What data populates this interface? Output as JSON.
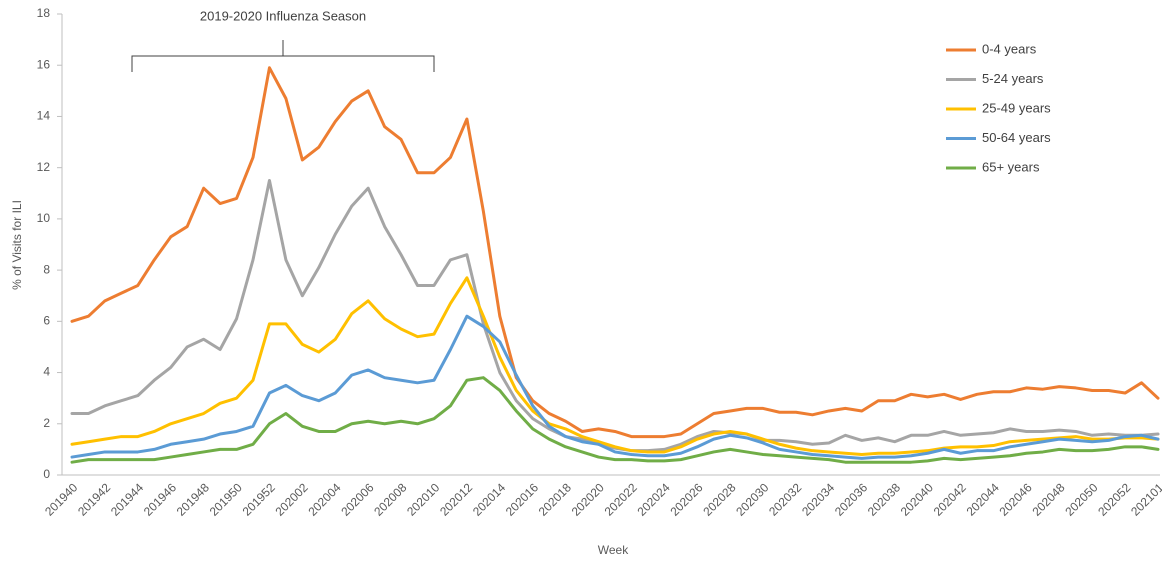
{
  "chart_data": {
    "type": "line",
    "annotation": "2019-2020 Influenza Season",
    "x_label": "Week",
    "y_label": "% of Visits for ILI",
    "categories": [
      "201940",
      null,
      "201942",
      null,
      "201944",
      null,
      "201946",
      null,
      "201948",
      null,
      "201950",
      null,
      "201952",
      null,
      "202002",
      null,
      "202004",
      null,
      "202006",
      null,
      "202008",
      null,
      "202010",
      null,
      "202012",
      null,
      "202014",
      null,
      "202016",
      null,
      "202018",
      null,
      "202020",
      null,
      "202022",
      null,
      "202024",
      null,
      "202026",
      null,
      "202028",
      null,
      "202030",
      null,
      "202032",
      null,
      "202034",
      null,
      "202036",
      null,
      "202038",
      null,
      "202040",
      null,
      "202042",
      null,
      "202044",
      null,
      "202046",
      null,
      "202048",
      null,
      "202050",
      null,
      "202052",
      null,
      "202101"
    ],
    "series": [
      {
        "name": "0-4 years",
        "color": "#ED7D31",
        "values": [
          6.0,
          6.2,
          6.8,
          7.1,
          7.4,
          8.4,
          9.3,
          9.7,
          11.2,
          10.6,
          10.8,
          12.4,
          15.9,
          14.7,
          12.3,
          12.8,
          13.8,
          14.6,
          15.0,
          13.6,
          13.1,
          11.8,
          11.8,
          12.4,
          13.9,
          10.3,
          6.2,
          3.8,
          2.9,
          2.4,
          2.1,
          1.7,
          1.8,
          1.7,
          1.5,
          1.5,
          1.5,
          1.6,
          2.0,
          2.4,
          2.5,
          2.6,
          2.6,
          2.45,
          2.45,
          2.35,
          2.5,
          2.6,
          2.5,
          2.9,
          2.9,
          3.15,
          3.05,
          3.15,
          2.95,
          3.15,
          3.25,
          3.25,
          3.4,
          3.35,
          3.45,
          3.4,
          3.3,
          3.3,
          3.2,
          3.6,
          3.0
        ]
      },
      {
        "name": "5-24 years",
        "color": "#A5A5A5",
        "values": [
          2.4,
          2.4,
          2.7,
          2.9,
          3.1,
          3.7,
          4.2,
          5.0,
          5.3,
          4.9,
          6.1,
          8.4,
          11.5,
          8.4,
          7.0,
          8.1,
          9.4,
          10.5,
          11.2,
          9.7,
          8.6,
          7.4,
          7.4,
          8.4,
          8.6,
          5.9,
          4.0,
          2.9,
          2.2,
          1.8,
          1.5,
          1.4,
          1.2,
          1.05,
          0.95,
          0.95,
          1.0,
          1.2,
          1.5,
          1.7,
          1.65,
          1.6,
          1.35,
          1.35,
          1.3,
          1.2,
          1.25,
          1.55,
          1.35,
          1.45,
          1.3,
          1.55,
          1.55,
          1.7,
          1.55,
          1.6,
          1.65,
          1.8,
          1.7,
          1.7,
          1.75,
          1.7,
          1.55,
          1.6,
          1.55,
          1.55,
          1.6
        ]
      },
      {
        "name": "25-49 years",
        "color": "#FFC000",
        "values": [
          1.2,
          1.3,
          1.4,
          1.5,
          1.5,
          1.7,
          2.0,
          2.2,
          2.4,
          2.8,
          3.0,
          3.7,
          5.9,
          5.9,
          5.1,
          4.8,
          5.3,
          6.3,
          6.8,
          6.1,
          5.7,
          5.4,
          5.5,
          6.7,
          7.7,
          6.2,
          4.6,
          3.3,
          2.5,
          2.0,
          1.8,
          1.5,
          1.3,
          1.1,
          0.95,
          0.9,
          0.9,
          1.1,
          1.4,
          1.6,
          1.7,
          1.6,
          1.4,
          1.2,
          1.05,
          0.95,
          0.9,
          0.85,
          0.8,
          0.85,
          0.85,
          0.9,
          0.95,
          1.05,
          1.1,
          1.1,
          1.15,
          1.3,
          1.35,
          1.4,
          1.45,
          1.5,
          1.4,
          1.4,
          1.45,
          1.45,
          1.4
        ]
      },
      {
        "name": "50-64 years",
        "color": "#5B9BD5",
        "values": [
          0.7,
          0.8,
          0.9,
          0.9,
          0.9,
          1.0,
          1.2,
          1.3,
          1.4,
          1.6,
          1.7,
          1.9,
          3.2,
          3.5,
          3.1,
          2.9,
          3.2,
          3.9,
          4.1,
          3.8,
          3.7,
          3.6,
          3.7,
          4.9,
          6.2,
          5.8,
          5.2,
          3.9,
          2.7,
          1.9,
          1.5,
          1.3,
          1.2,
          0.9,
          0.8,
          0.75,
          0.75,
          0.85,
          1.1,
          1.4,
          1.55,
          1.45,
          1.25,
          1.0,
          0.9,
          0.8,
          0.75,
          0.7,
          0.65,
          0.7,
          0.7,
          0.75,
          0.85,
          1.0,
          0.85,
          0.95,
          0.95,
          1.1,
          1.2,
          1.3,
          1.4,
          1.35,
          1.3,
          1.35,
          1.5,
          1.55,
          1.4
        ]
      },
      {
        "name": "65+ years",
        "color": "#70AD47",
        "values": [
          0.5,
          0.6,
          0.6,
          0.6,
          0.6,
          0.6,
          0.7,
          0.8,
          0.9,
          1.0,
          1.0,
          1.2,
          2.0,
          2.4,
          1.9,
          1.7,
          1.7,
          2.0,
          2.1,
          2.0,
          2.1,
          2.0,
          2.2,
          2.7,
          3.7,
          3.8,
          3.3,
          2.5,
          1.8,
          1.4,
          1.1,
          0.9,
          0.7,
          0.6,
          0.6,
          0.55,
          0.55,
          0.6,
          0.75,
          0.9,
          1.0,
          0.9,
          0.8,
          0.75,
          0.7,
          0.65,
          0.6,
          0.5,
          0.5,
          0.5,
          0.5,
          0.5,
          0.55,
          0.65,
          0.6,
          0.65,
          0.7,
          0.75,
          0.85,
          0.9,
          1.0,
          0.95,
          0.95,
          1.0,
          1.1,
          1.1,
          1.0
        ]
      }
    ],
    "ylim": [
      0,
      18
    ],
    "yticks": [
      0,
      2,
      4,
      6,
      8,
      10,
      12,
      14,
      16,
      18
    ],
    "grid": false,
    "legend": "top-right"
  }
}
